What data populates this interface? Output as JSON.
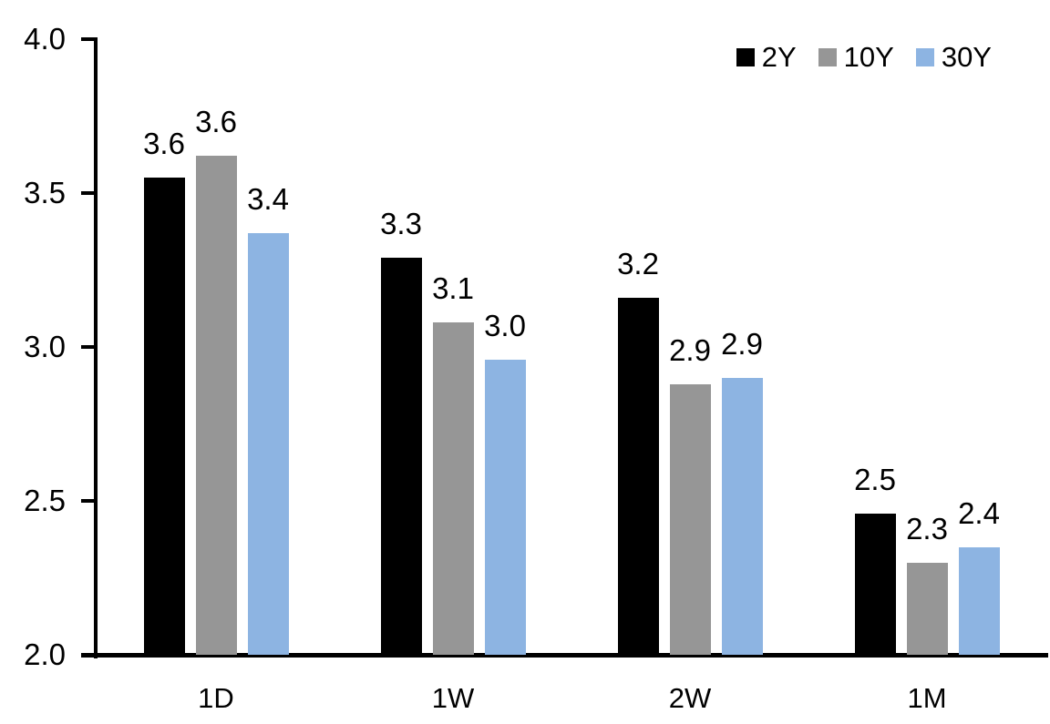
{
  "chart_data": {
    "type": "bar",
    "title": "",
    "xlabel": "",
    "ylabel": "",
    "categories": [
      "1D",
      "1W",
      "2W",
      "1M"
    ],
    "series": [
      {
        "name": "2Y",
        "color": "#000000",
        "values": [
          3.55,
          3.29,
          3.16,
          2.46
        ],
        "labels": [
          "3.6",
          "3.3",
          "3.2",
          "2.5"
        ]
      },
      {
        "name": "10Y",
        "color": "#969696",
        "values": [
          3.62,
          3.08,
          2.88,
          2.3
        ],
        "labels": [
          "3.6",
          "3.1",
          "2.9",
          "2.3"
        ]
      },
      {
        "name": "30Y",
        "color": "#8DB4E2",
        "values": [
          3.37,
          2.96,
          2.9,
          2.35
        ],
        "labels": [
          "3.4",
          "3.0",
          "2.9",
          "2.4"
        ]
      }
    ],
    "ylim": [
      2.0,
      4.0
    ],
    "ytick_values": [
      2.0,
      2.5,
      3.0,
      3.5,
      4.0
    ],
    "ytick_labels": [
      "2.0",
      "2.5",
      "3.0",
      "3.5",
      "4.0"
    ],
    "grid": false,
    "legend_position": "top-right",
    "axis_color": "#000000",
    "background_color": "#FFFFFF"
  }
}
